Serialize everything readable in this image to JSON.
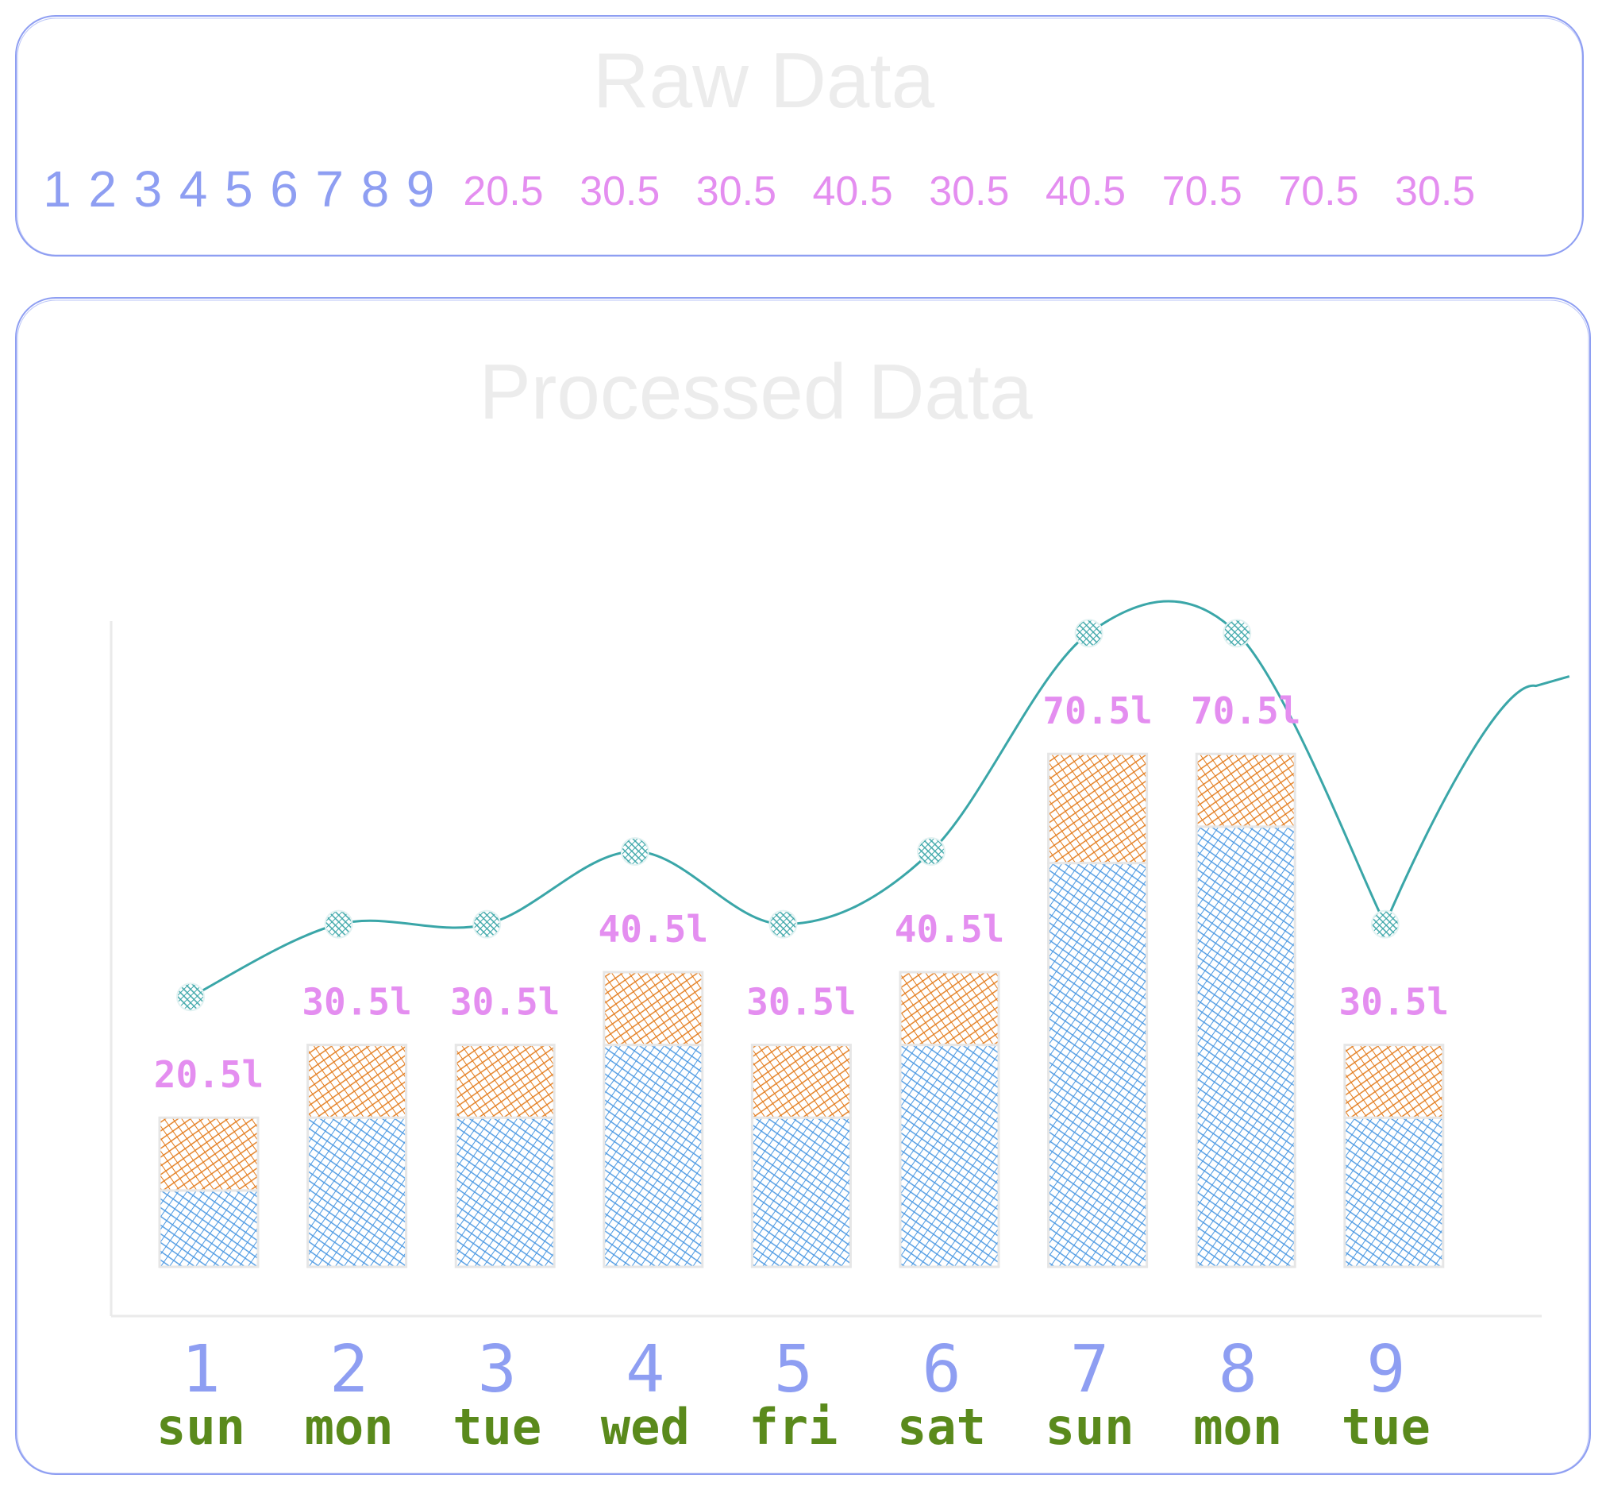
{
  "raw_panel": {
    "title": "Raw Data",
    "numbers": [
      "1",
      "2",
      "3",
      "4",
      "5",
      "6",
      "7",
      "8",
      "9"
    ],
    "values": [
      "20.5",
      "30.5",
      "30.5",
      "40.5",
      "30.5",
      "40.5",
      "70.5",
      "70.5",
      "30.5"
    ]
  },
  "processed_panel": {
    "title": "Processed Data"
  },
  "colors": {
    "frame": "#8e9ef2",
    "index": "#8e9ef2",
    "value": "#e48ef0",
    "day": "#5a8a1c",
    "bar_lower": "#4a98e2",
    "bar_upper": "#e37a1a",
    "line": "#3aa6a8",
    "axis": "#eaeaea",
    "title": "#ececec"
  },
  "chart_data": {
    "type": "bar",
    "title": "Processed Data",
    "categories": [
      "1",
      "2",
      "3",
      "4",
      "5",
      "6",
      "7",
      "8",
      "9"
    ],
    "day_labels": [
      "sun",
      "mon",
      "tue",
      "wed",
      "fri",
      "sat",
      "sun",
      "mon",
      "tue"
    ],
    "value_labels": [
      "20.5l",
      "30.5l",
      "30.5l",
      "40.5l",
      "30.5l",
      "40.5l",
      "70.5l",
      "70.5l",
      "30.5l"
    ],
    "values": [
      20.5,
      30.5,
      30.5,
      40.5,
      30.5,
      40.5,
      70.5,
      70.5,
      30.5
    ],
    "stacked_series": [
      {
        "values": [
          10.5,
          20.5,
          20.5,
          30.5,
          20.5,
          30.5,
          55.5,
          60.5,
          20.5
        ]
      },
      {
        "values": [
          10,
          10,
          10,
          10,
          10,
          10,
          15,
          10,
          10
        ]
      }
    ],
    "line_series": {
      "values": [
        20.5,
        30.5,
        30.5,
        40.5,
        30.5,
        40.5,
        70.5,
        70.5,
        30.5
      ]
    },
    "ylim": [
      0,
      80
    ],
    "grid": false,
    "style": "hand-drawn hatched"
  }
}
